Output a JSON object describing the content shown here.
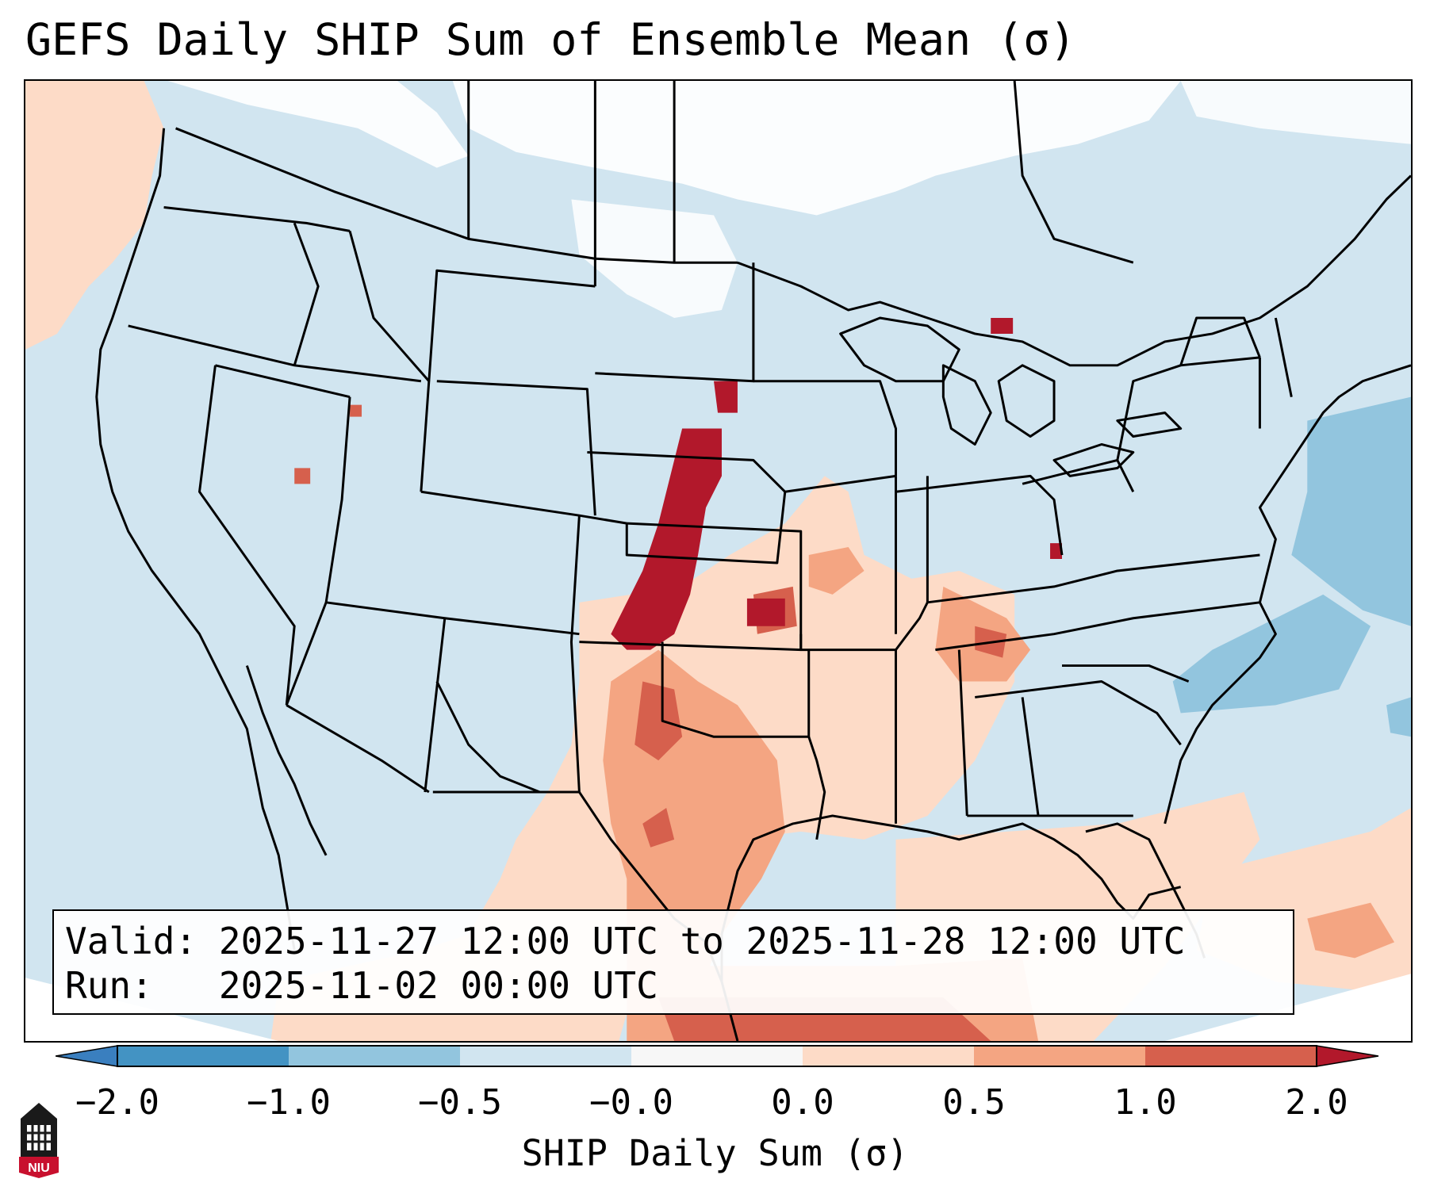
{
  "title": "GEFS Daily SHIP Sum of Ensemble Mean (σ)",
  "info_box": {
    "valid_label": "Valid:",
    "valid_value": "2025-11-27 12:00 UTC to 2025-11-28 12:00 UTC",
    "run_label": "Run:",
    "run_value": "2025-11-02 00:00 UTC"
  },
  "colorbar": {
    "label": "SHIP Daily Sum (σ)",
    "ticks": [
      "−2.0",
      "−1.0",
      "−0.5",
      "−0.0",
      "0.0",
      "0.5",
      "1.0",
      "2.0"
    ],
    "colors": {
      "below_-2.0": "#3a7fbf",
      "-2.0_to_-1.0": "#4393c3",
      "-1.0_to_-0.5": "#92c5de",
      "-0.5_to_-0.0": "#d1e5f0",
      "-0.0_to_0.0": "#f7f7f7",
      "0.0_to_0.5": "#fddbc7",
      "0.5_to_1.0": "#f4a582",
      "1.0_to_2.0": "#d6604d",
      "above_2.0": "#b2182b"
    }
  },
  "logo": {
    "name": "NIU",
    "text": "NIU",
    "color": "#c8102e"
  }
}
